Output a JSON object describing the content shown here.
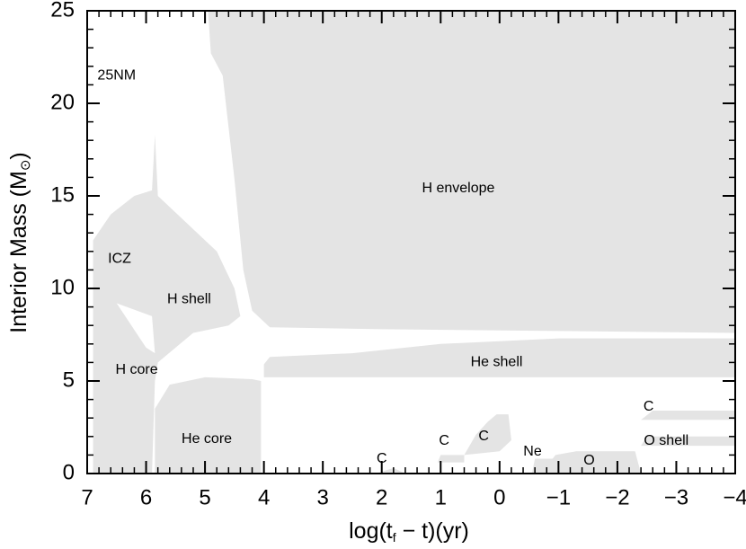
{
  "chart_data": {
    "type": "kippenhahn",
    "xlabel": [
      "log(t",
      "f",
      " − t)(yr)"
    ],
    "ylabel": [
      "Interior Mass (M",
      "⊙",
      ")"
    ],
    "xlim": [
      7,
      -4
    ],
    "ylim": [
      0,
      25
    ],
    "xticks": [
      7,
      6,
      5,
      4,
      3,
      2,
      1,
      0,
      {
        "value": -1,
        "label": "−1"
      },
      {
        "value": -2,
        "label": "−2"
      },
      {
        "value": -3,
        "label": "−3"
      },
      {
        "value": -4,
        "label": "−4"
      }
    ],
    "yticks": [
      0,
      5,
      10,
      15,
      20,
      25
    ],
    "regions": [
      {
        "color": "#e4e4e4",
        "x": [
          4.95,
          4.9,
          4.7,
          4.5,
          4.35,
          4.2,
          3.9,
          2,
          -4,
          -4
        ],
        "y": [
          25,
          22.7,
          21.5,
          15.9,
          11,
          8.8,
          7.9,
          7.8,
          7.6,
          25
        ]
      },
      {
        "color": "#e4e4e4",
        "x": [
          6.9,
          6.9,
          6.6,
          6.2,
          5.9,
          5.85,
          5.8,
          5.3,
          4.8,
          4.5,
          4.4,
          4.6,
          5.2,
          5.8,
          5.85,
          5.9
        ],
        "y": [
          0,
          12.6,
          14,
          15,
          15.3,
          18.3,
          15,
          13.5,
          12,
          10,
          8.5,
          8,
          7.6,
          6,
          5,
          0
        ]
      },
      {
        "color": "#ffffff",
        "x": [
          6.5,
          5.9,
          5.85,
          6.0
        ],
        "y": [
          9.2,
          8.5,
          6.5,
          6.8
        ]
      },
      {
        "color": "#e4e4e4",
        "x": [
          5.85,
          5.6,
          5.0,
          4.2,
          4.05,
          4.05,
          5.85
        ],
        "y": [
          3.5,
          4.8,
          5.2,
          5.1,
          5.0,
          0,
          0
        ]
      },
      {
        "color": "#e4e4e4",
        "x": [
          4.0,
          4.0,
          3.9,
          2.5,
          1,
          -1,
          -4,
          -4,
          2
        ],
        "y": [
          5.2,
          5.9,
          6.3,
          6.5,
          7.0,
          7.3,
          7.3,
          5.2,
          5.2
        ]
      },
      {
        "color": "#e4e4e4",
        "x": [
          2.1,
          1.8,
          1.6
        ],
        "y": [
          0,
          0.3,
          0
        ]
      },
      {
        "color": "#e4e4e4",
        "x": [
          1.05,
          1.0,
          0.6,
          0.6
        ],
        "y": [
          0.6,
          1.0,
          1.0,
          0.6
        ]
      },
      {
        "color": "#e4e4e4",
        "x": [
          0.6,
          0.4,
          0.2,
          0.05,
          -0.15,
          -0.2,
          0.0
        ],
        "y": [
          1.0,
          2.1,
          2.8,
          3.2,
          3.2,
          1.8,
          1.2
        ]
      },
      {
        "color": "#e4e4e4",
        "x": [
          -0.55,
          -0.6,
          -0.9,
          -0.95,
          -1.3,
          -2.3,
          -2.4
        ],
        "y": [
          0,
          0.8,
          0.8,
          1.0,
          1.2,
          1.2,
          0
        ]
      },
      {
        "color": "#e4e4e4",
        "x": [
          -2.4,
          -2.5,
          -4,
          -4
        ],
        "y": [
          1.5,
          2.0,
          2.0,
          1.5
        ]
      },
      {
        "color": "#e4e4e4",
        "x": [
          -2.4,
          -2.6,
          -4,
          -4
        ],
        "y": [
          2.9,
          3.4,
          3.4,
          2.9
        ]
      }
    ],
    "annotations": [
      {
        "text": "25NM",
        "x": 6.5,
        "y": 21.5
      },
      {
        "text": "H envelope",
        "x": 0.7,
        "y": 15.4
      },
      {
        "text": "ICZ",
        "x": 6.45,
        "y": 11.6
      },
      {
        "text": "H shell",
        "x": 5.27,
        "y": 9.4
      },
      {
        "text": "H core",
        "x": 6.16,
        "y": 5.6
      },
      {
        "text": "He shell",
        "x": 0.05,
        "y": 6.0
      },
      {
        "text": "He core",
        "x": 4.97,
        "y": 1.85
      },
      {
        "text": "C",
        "x": 2.0,
        "y": 0.78
      },
      {
        "text": "C",
        "x": 0.94,
        "y": 1.75
      },
      {
        "text": "C",
        "x": 0.27,
        "y": 2.0
      },
      {
        "text": "Ne",
        "x": -0.56,
        "y": 1.17
      },
      {
        "text": "O",
        "x": -1.52,
        "y": 0.68
      },
      {
        "text": "C",
        "x": -2.53,
        "y": 3.6
      },
      {
        "text": "O shell",
        "x": -2.83,
        "y": 1.75
      }
    ]
  }
}
